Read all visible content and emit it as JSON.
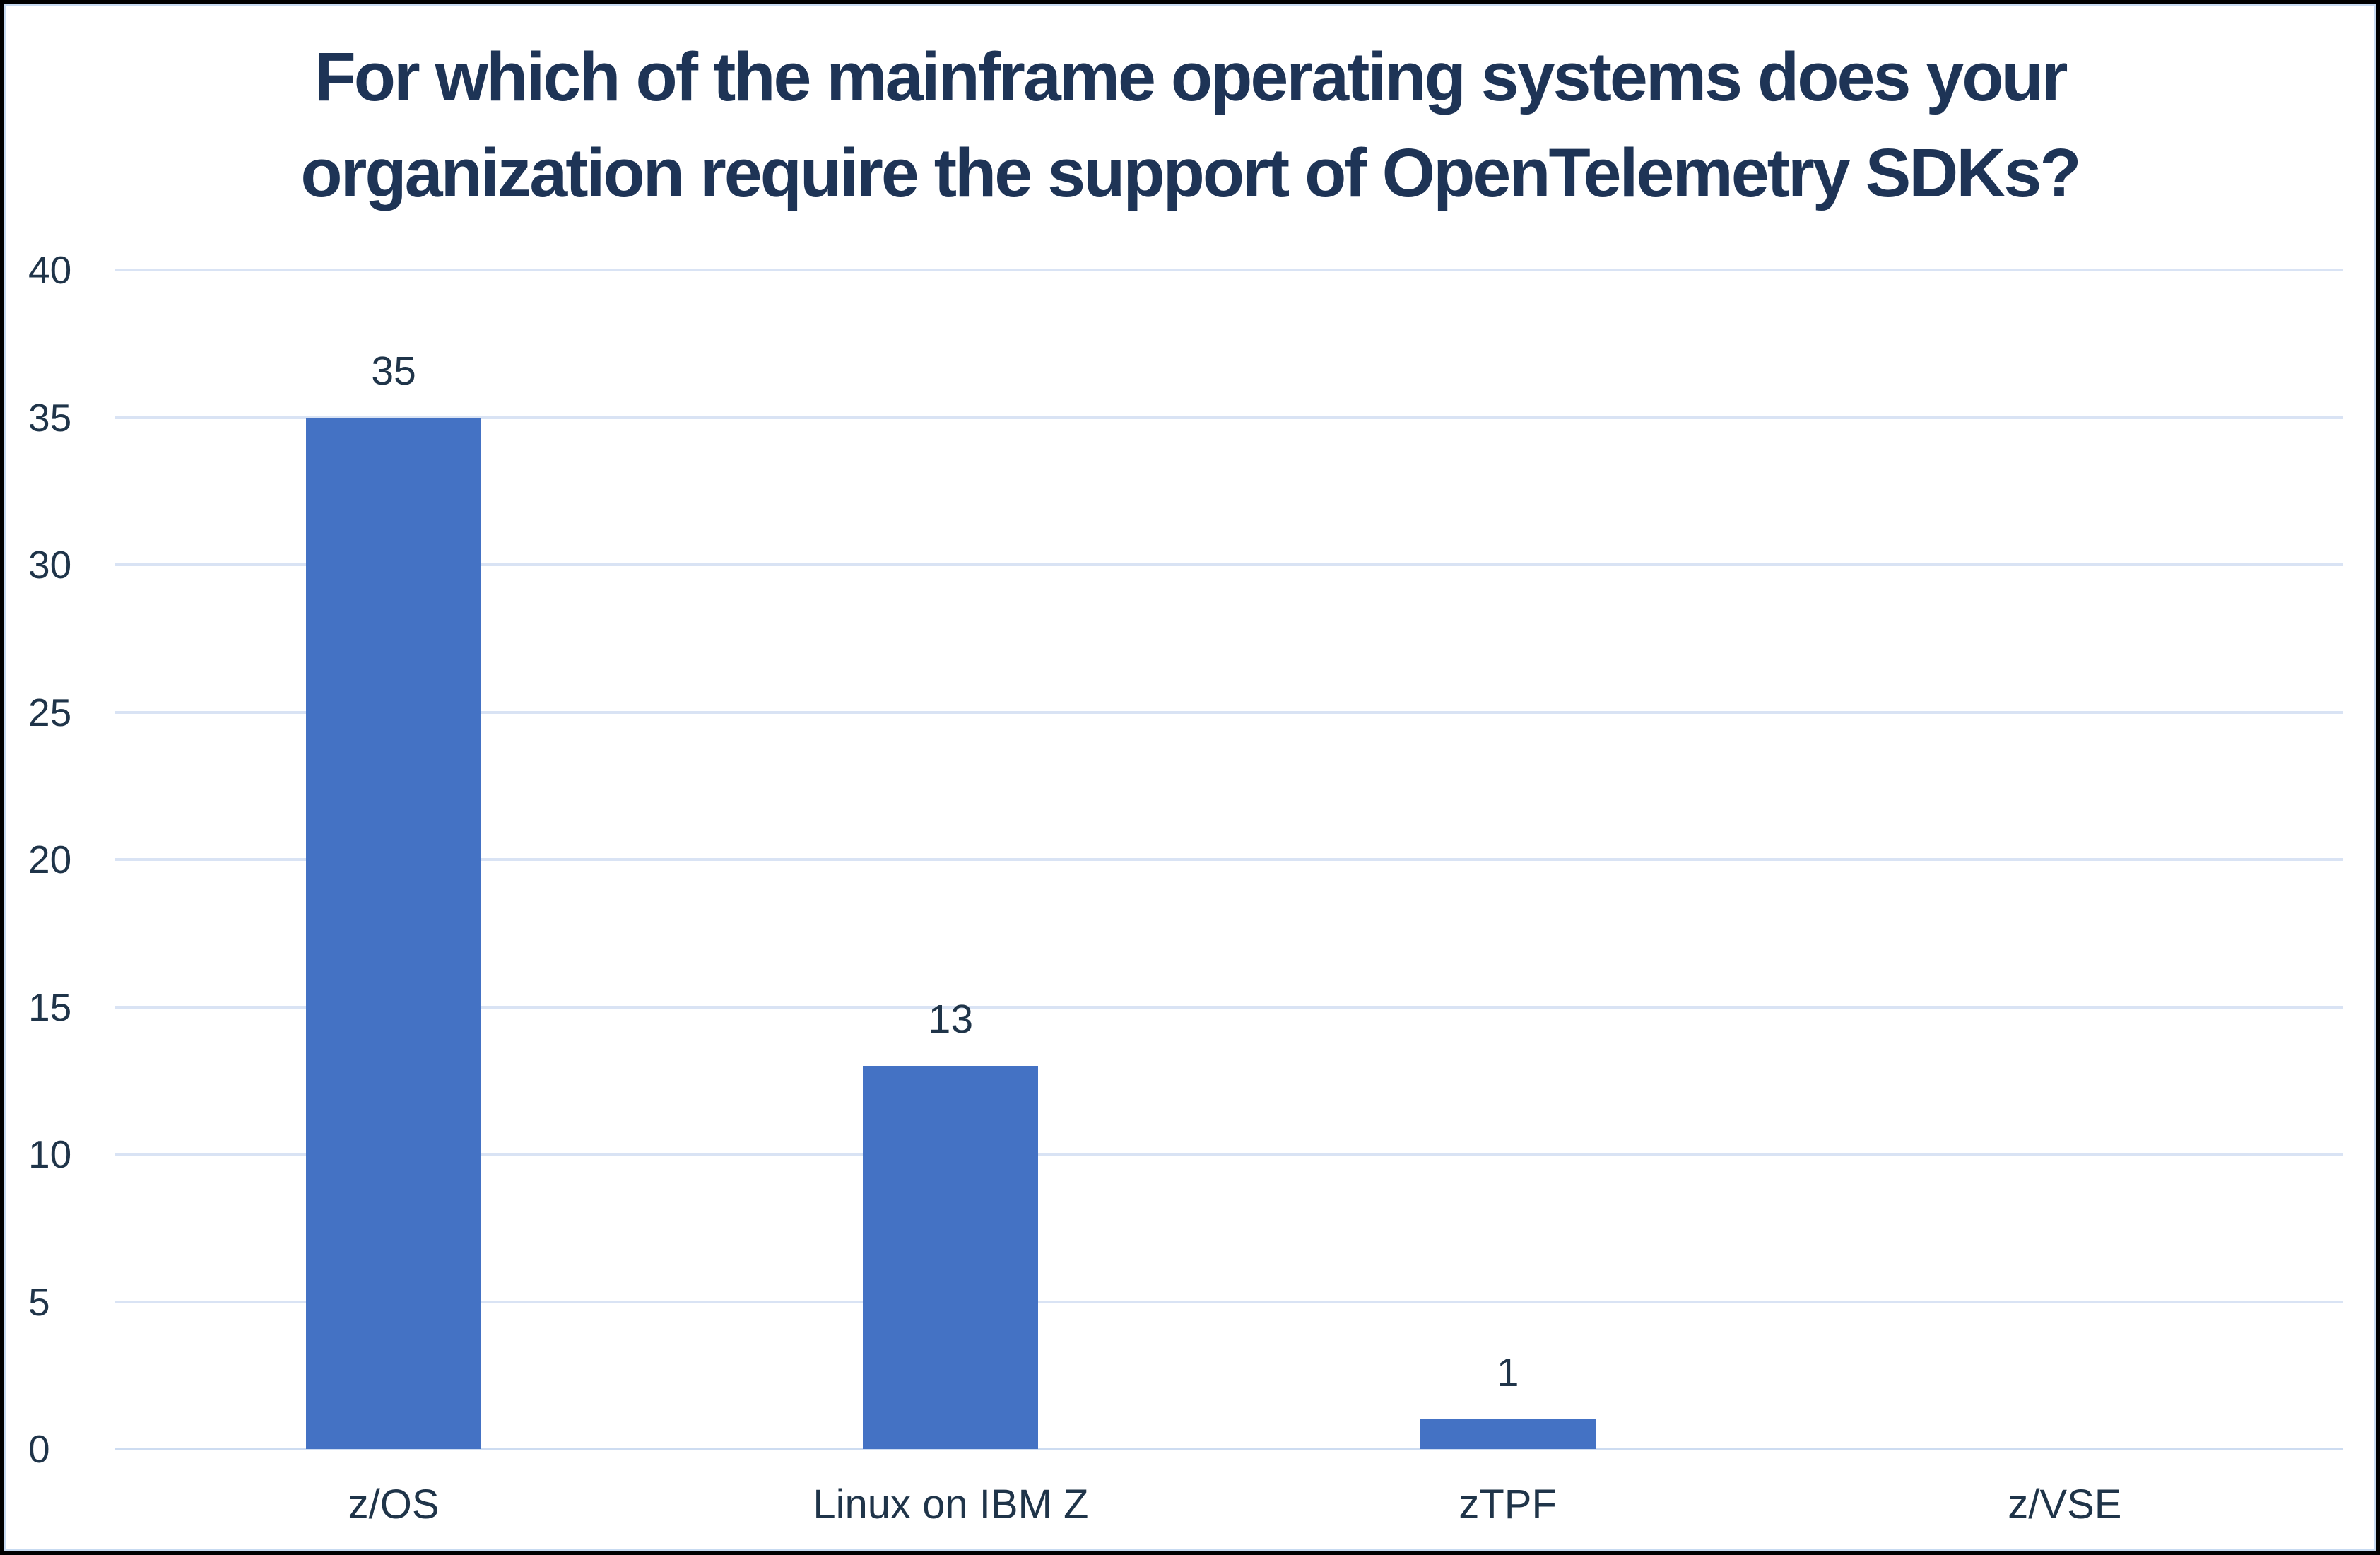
{
  "header": {
    "title_line1": "For which of the mainframe operating systems does your",
    "title_line2": "organization require the support of OpenTelemetry SDKs?"
  },
  "chart_data": {
    "type": "bar",
    "title": "For which of the mainframe operating systems does your organization require the support of OpenTelemetry SDKs?",
    "categories": [
      "z/OS",
      "Linux on IBM Z",
      "zTPF",
      "z/VSE"
    ],
    "values": [
      35,
      13,
      1,
      0
    ],
    "data_labels": [
      "35",
      "13",
      "1",
      ""
    ],
    "xlabel": "",
    "ylabel": "",
    "ylim": [
      0,
      40
    ],
    "ytick_step": 5,
    "yticks": [
      0,
      5,
      10,
      15,
      20,
      25,
      30,
      35,
      40
    ],
    "grid": "horizontal",
    "legend": "none",
    "show_label_only_if_positive": true,
    "palette": {
      "bar": "#4472C4",
      "gridline": "#D9E3F4",
      "axis_line": "#CDDCF1",
      "text": "#1F3449",
      "title_text": "#1E3456",
      "inner_border": "#C7DAF1",
      "outer_border": "#000000",
      "background": "#FFFFFF"
    }
  }
}
